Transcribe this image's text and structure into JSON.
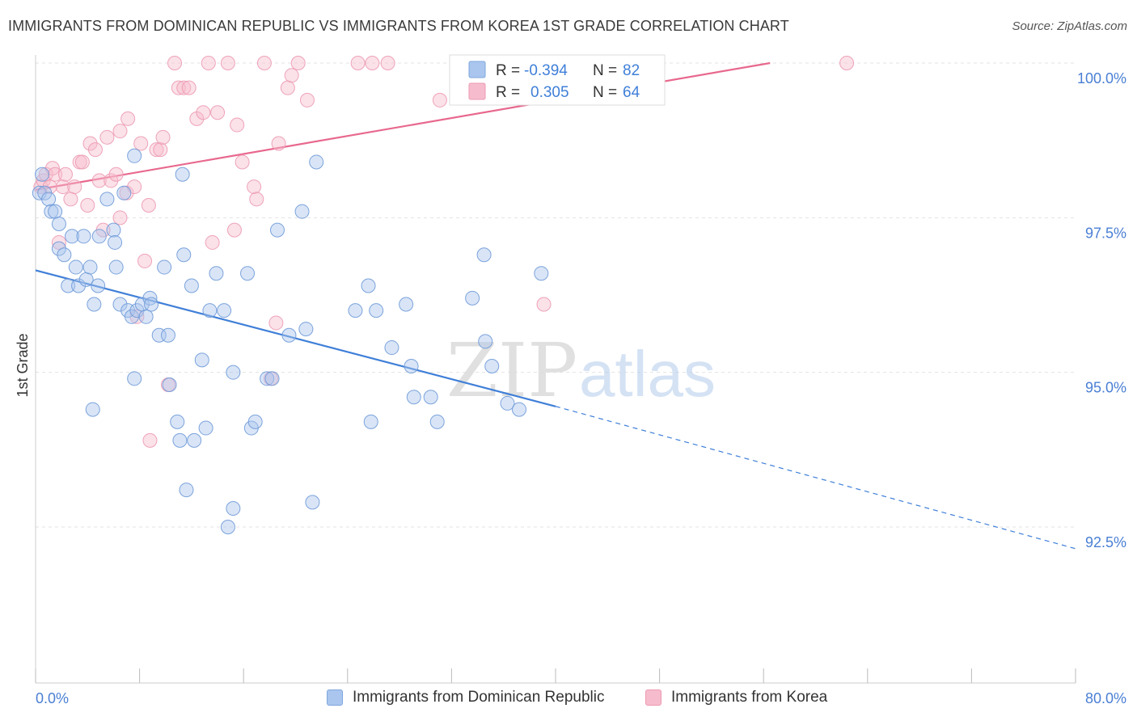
{
  "header": {
    "title": "IMMIGRANTS FROM DOMINICAN REPUBLIC VS IMMIGRANTS FROM KOREA 1ST GRADE CORRELATION CHART",
    "source": "Source: ZipAtlas.com"
  },
  "watermark": {
    "zip": "ZIP",
    "atlas": "atlas"
  },
  "legend": {
    "rows": [
      {
        "r_label": "R = ",
        "r_value": "-0.394",
        "n_label": "N = ",
        "n_value": "82"
      },
      {
        "r_label": "R = ",
        "r_value": "0.305",
        "n_label": "N = ",
        "n_value": "64"
      }
    ]
  },
  "bottom_legend": {
    "series1": "Immigrants from Dominican Republic",
    "series2": "Immigrants from Korea"
  },
  "colors": {
    "blue": "#3f7fd8",
    "blue_fill": "#aac6ee",
    "pink": "#e8688e",
    "pink_fill": "#f6bccd",
    "tick_label": "#4a7fd4"
  },
  "chart_data": {
    "type": "scatter",
    "title": "IMMIGRANTS FROM DOMINICAN REPUBLIC VS IMMIGRANTS FROM KOREA 1ST GRADE CORRELATION CHART",
    "xlabel": "",
    "ylabel": "1st Grade",
    "xlim": [
      0,
      80
    ],
    "ylim": [
      90.5,
      100.2
    ],
    "x_tick_labels": [
      "0.0%",
      "80.0%"
    ],
    "y_ticks": [
      92.5,
      95.0,
      97.5,
      100.0
    ],
    "y_tick_labels": [
      "92.5%",
      "95.0%",
      "97.5%",
      "100.0%"
    ],
    "grid": true,
    "series": [
      {
        "name": "Immigrants from Dominican Republic",
        "R": -0.394,
        "N": 82,
        "points": [
          [
            0.3,
            97.9
          ],
          [
            0.5,
            98.2
          ],
          [
            0.7,
            97.9
          ],
          [
            1.0,
            97.8
          ],
          [
            1.2,
            97.6
          ],
          [
            1.5,
            97.6
          ],
          [
            1.8,
            97.4
          ],
          [
            1.8,
            97.0
          ],
          [
            2.2,
            96.9
          ],
          [
            2.8,
            97.2
          ],
          [
            2.5,
            96.4
          ],
          [
            3.1,
            96.7
          ],
          [
            3.3,
            96.4
          ],
          [
            3.7,
            97.2
          ],
          [
            3.9,
            96.5
          ],
          [
            4.2,
            96.7
          ],
          [
            4.5,
            96.1
          ],
          [
            4.8,
            96.4
          ],
          [
            4.9,
            97.2
          ],
          [
            5.5,
            97.8
          ],
          [
            6.0,
            97.3
          ],
          [
            6.1,
            97.1
          ],
          [
            6.2,
            96.7
          ],
          [
            6.5,
            96.1
          ],
          [
            6.8,
            97.9
          ],
          [
            7.1,
            96.0
          ],
          [
            7.4,
            95.9
          ],
          [
            7.6,
            98.5
          ],
          [
            7.8,
            96.0
          ],
          [
            8.2,
            96.1
          ],
          [
            8.5,
            95.9
          ],
          [
            8.8,
            96.2
          ],
          [
            8.9,
            96.1
          ],
          [
            9.5,
            95.6
          ],
          [
            9.9,
            96.7
          ],
          [
            10.2,
            95.6
          ],
          [
            10.3,
            94.8
          ],
          [
            10.9,
            94.2
          ],
          [
            11.1,
            93.9
          ],
          [
            11.3,
            98.2
          ],
          [
            11.4,
            96.9
          ],
          [
            11.6,
            93.1
          ],
          [
            12.0,
            96.4
          ],
          [
            12.2,
            93.9
          ],
          [
            12.8,
            95.2
          ],
          [
            13.1,
            94.1
          ],
          [
            13.4,
            96.0
          ],
          [
            13.9,
            96.6
          ],
          [
            14.5,
            96.0
          ],
          [
            14.8,
            92.5
          ],
          [
            15.2,
            95.0
          ],
          [
            15.2,
            92.8
          ],
          [
            16.3,
            96.6
          ],
          [
            16.6,
            94.1
          ],
          [
            16.9,
            94.2
          ],
          [
            17.8,
            94.9
          ],
          [
            18.2,
            94.9
          ],
          [
            18.6,
            97.3
          ],
          [
            19.5,
            95.6
          ],
          [
            20.5,
            97.6
          ],
          [
            20.8,
            95.7
          ],
          [
            21.3,
            92.9
          ],
          [
            21.6,
            98.4
          ],
          [
            24.6,
            96.0
          ],
          [
            25.6,
            96.4
          ],
          [
            25.8,
            94.2
          ],
          [
            26.2,
            96.0
          ],
          [
            27.4,
            95.4
          ],
          [
            28.5,
            96.1
          ],
          [
            28.9,
            95.1
          ],
          [
            29.1,
            94.6
          ],
          [
            30.4,
            94.6
          ],
          [
            30.9,
            94.2
          ],
          [
            33.6,
            96.2
          ],
          [
            34.5,
            96.9
          ],
          [
            34.6,
            95.5
          ],
          [
            35.1,
            95.1
          ],
          [
            36.3,
            94.5
          ],
          [
            37.2,
            94.4
          ],
          [
            38.9,
            96.6
          ],
          [
            4.4,
            94.4
          ],
          [
            7.6,
            94.9
          ]
        ],
        "trendline": {
          "x0": 0,
          "y0": 96.65,
          "x1": 40,
          "y1": 94.45,
          "dashed_to_x": 80,
          "dashed_to_y": 92.15
        }
      },
      {
        "name": "Immigrants from Korea",
        "R": 0.305,
        "N": 64,
        "points": [
          [
            0.4,
            98.0
          ],
          [
            0.6,
            98.1
          ],
          [
            0.8,
            98.2
          ],
          [
            1.1,
            98.0
          ],
          [
            1.3,
            98.3
          ],
          [
            1.5,
            98.2
          ],
          [
            1.8,
            97.1
          ],
          [
            2.1,
            98.0
          ],
          [
            2.3,
            98.2
          ],
          [
            2.7,
            97.8
          ],
          [
            3.0,
            98.0
          ],
          [
            3.4,
            98.4
          ],
          [
            3.6,
            98.4
          ],
          [
            4.0,
            97.7
          ],
          [
            4.2,
            98.7
          ],
          [
            4.6,
            98.6
          ],
          [
            4.9,
            98.1
          ],
          [
            5.2,
            97.3
          ],
          [
            5.5,
            98.8
          ],
          [
            5.8,
            98.1
          ],
          [
            6.2,
            98.2
          ],
          [
            6.5,
            98.9
          ],
          [
            6.5,
            97.5
          ],
          [
            7.0,
            97.9
          ],
          [
            7.1,
            99.1
          ],
          [
            7.8,
            95.9
          ],
          [
            7.6,
            98.0
          ],
          [
            8.1,
            98.7
          ],
          [
            8.4,
            96.8
          ],
          [
            8.7,
            97.7
          ],
          [
            8.8,
            93.9
          ],
          [
            9.3,
            98.6
          ],
          [
            9.6,
            98.6
          ],
          [
            9.8,
            98.8
          ],
          [
            10.2,
            94.8
          ],
          [
            10.7,
            100.0
          ],
          [
            11.0,
            99.6
          ],
          [
            11.4,
            99.6
          ],
          [
            11.8,
            99.6
          ],
          [
            12.4,
            99.1
          ],
          [
            12.9,
            99.2
          ],
          [
            13.3,
            100.0
          ],
          [
            13.6,
            97.1
          ],
          [
            14.0,
            99.2
          ],
          [
            14.8,
            100.0
          ],
          [
            15.3,
            97.3
          ],
          [
            15.5,
            99.0
          ],
          [
            15.9,
            98.4
          ],
          [
            16.8,
            98.0
          ],
          [
            17.0,
            97.8
          ],
          [
            17.6,
            100.0
          ],
          [
            18.1,
            94.9
          ],
          [
            18.5,
            95.8
          ],
          [
            18.7,
            98.7
          ],
          [
            19.4,
            99.6
          ],
          [
            19.7,
            99.8
          ],
          [
            20.2,
            100.0
          ],
          [
            20.9,
            99.4
          ],
          [
            24.8,
            100.0
          ],
          [
            25.9,
            100.0
          ],
          [
            27.1,
            100.0
          ],
          [
            31.1,
            99.4
          ],
          [
            39.1,
            96.1
          ],
          [
            62.4,
            100.0
          ]
        ],
        "trendline": {
          "x0": 0,
          "y0": 97.95,
          "x1": 56.5,
          "y1": 100.0
        }
      }
    ]
  }
}
